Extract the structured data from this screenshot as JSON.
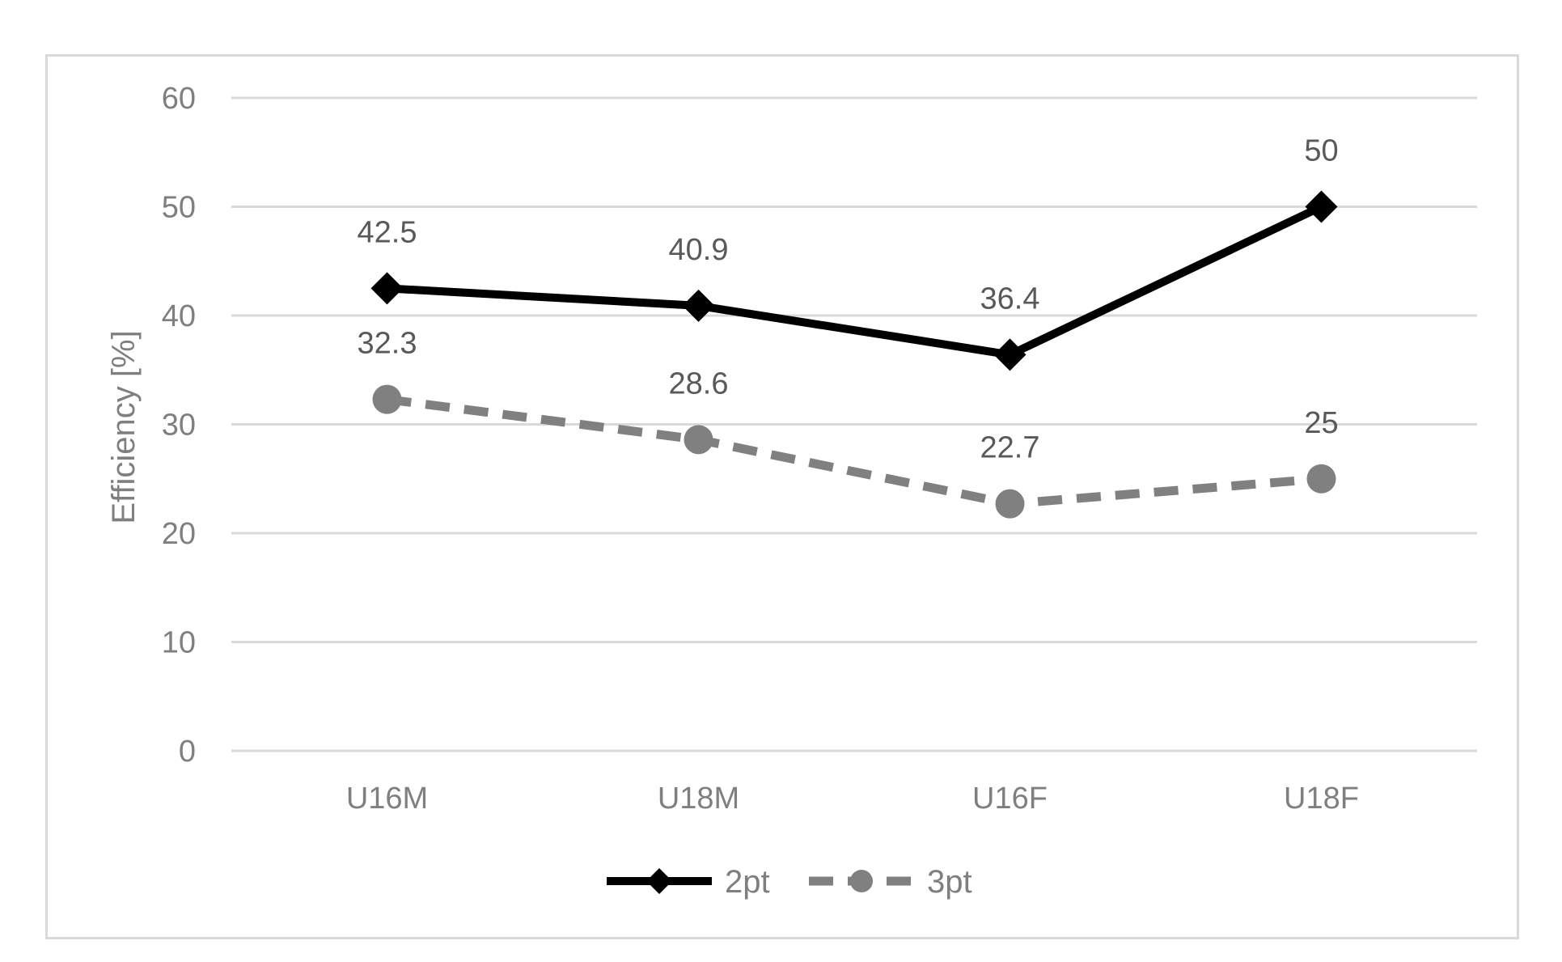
{
  "chart_data": {
    "type": "line",
    "categories": [
      "U16M",
      "U18M",
      "U16F",
      "U18F"
    ],
    "series": [
      {
        "name": "2pt",
        "values": [
          42.5,
          40.9,
          36.4,
          50
        ],
        "labels": [
          "42.5",
          "40.9",
          "36.4",
          "50"
        ],
        "color": "#000000",
        "dash": "solid",
        "marker": "diamond"
      },
      {
        "name": "3pt",
        "values": [
          32.3,
          28.6,
          22.7,
          25
        ],
        "labels": [
          "32.3",
          "28.6",
          "22.7",
          "25"
        ],
        "color": "#808080",
        "dash": "dashed",
        "marker": "circle"
      }
    ],
    "ylabel": "Efficiency [%]",
    "ylim": [
      0,
      60
    ],
    "yticks": [
      "0",
      "10",
      "20",
      "30",
      "40",
      "50",
      "60"
    ],
    "grid": true,
    "legend_position": "bottom"
  }
}
